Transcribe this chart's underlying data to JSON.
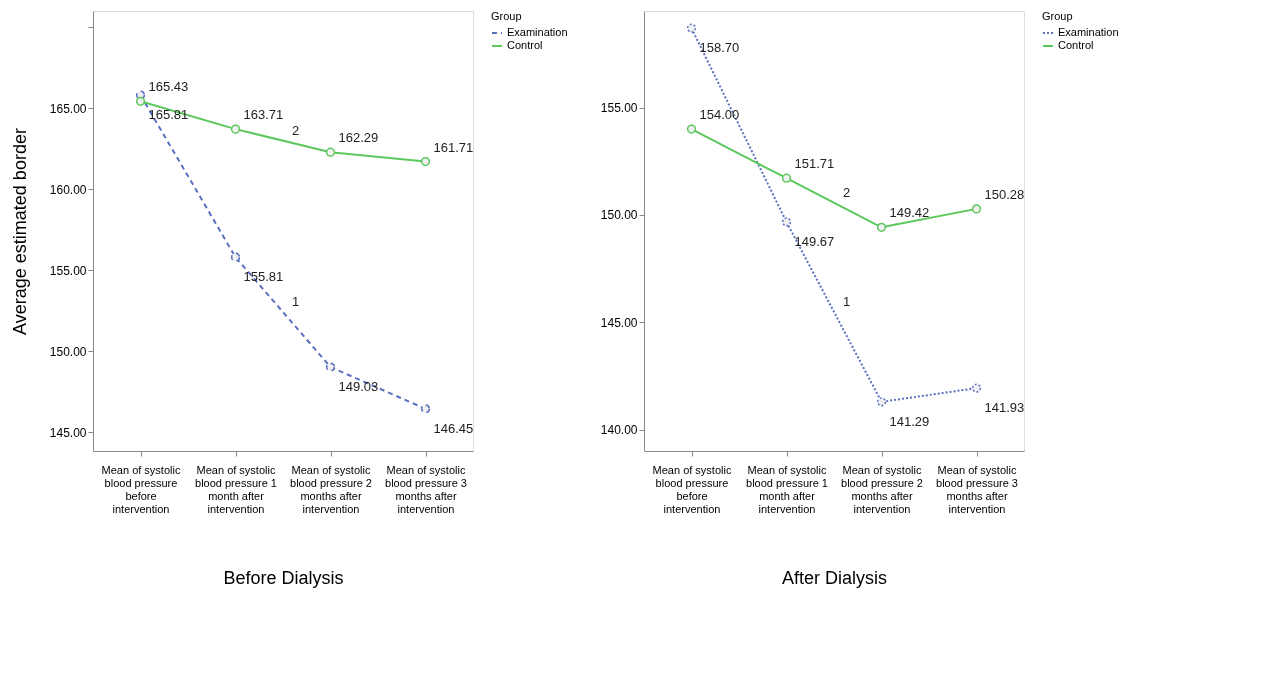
{
  "chart_data": [
    {
      "type": "line",
      "xlabel": "Before Dialysis",
      "ylabel": "Average estimated border",
      "legend_title": "Group",
      "legend": "top right",
      "marker": "circle",
      "grid": false,
      "categories": [
        "Mean of systolic blood pressure before intervention",
        "Mean of systolic blood pressure 1 month after intervention",
        "Mean of systolic blood pressure 2 months after intervention",
        "Mean of systolic blood pressure 3 months after intervention"
      ],
      "ylim": [
        143.85,
        171
      ],
      "yticks": [
        {
          "value": 145,
          "label": "145.00"
        },
        {
          "value": 150,
          "label": "150.00"
        },
        {
          "value": 155,
          "label": "155.00"
        },
        {
          "value": 160,
          "label": "160.00"
        },
        {
          "value": 165,
          "label": "165.00"
        },
        {
          "value": 170,
          "label": null
        }
      ],
      "series": [
        {
          "name": "Examination",
          "color": "#5b6fc0",
          "line_style": "dashed",
          "values": [
            165.81,
            155.81,
            149.03,
            146.45
          ],
          "value_labels": [
            "165.81",
            "155.81",
            "149.03",
            "146.45"
          ]
        },
        {
          "name": "Control",
          "color": "#5cc85c",
          "line_style": "solid",
          "values": [
            165.43,
            163.71,
            162.29,
            161.71
          ],
          "value_labels": [
            "165.43",
            "163.71",
            "162.29",
            "161.71"
          ]
        }
      ],
      "annotations": [
        "1",
        "2"
      ]
    },
    {
      "type": "line",
      "xlabel": "After Dialysis",
      "legend_title": "Group",
      "legend": "top right",
      "marker": "circle",
      "grid": false,
      "categories": [
        "Mean of systolic blood pressure before intervention",
        "Mean of systolic blood pressure 1 month after intervention",
        "Mean of systolic blood pressure 2 months after intervention",
        "Mean of systolic blood pressure 3 months after intervention"
      ],
      "ylim": [
        139,
        159.5
      ],
      "yticks": [
        {
          "value": 140,
          "label": "140.00"
        },
        {
          "value": 145,
          "label": "145.00"
        },
        {
          "value": 150,
          "label": "150.00"
        },
        {
          "value": 155,
          "label": "155.00"
        }
      ],
      "series": [
        {
          "name": "Examination",
          "color": "#5b6fc0",
          "line_style": "dotted",
          "values": [
            158.7,
            149.67,
            141.29,
            141.93
          ],
          "value_labels": [
            "158.70",
            "149.67",
            "141.29",
            "141.93"
          ]
        },
        {
          "name": "Control",
          "color": "#5cc85c",
          "line_style": "solid",
          "values": [
            154.0,
            151.71,
            149.42,
            150.28
          ],
          "value_labels": [
            "154.00",
            "151.71",
            "149.42",
            "150.28"
          ]
        }
      ],
      "annotations": [
        "1",
        "2"
      ]
    }
  ]
}
